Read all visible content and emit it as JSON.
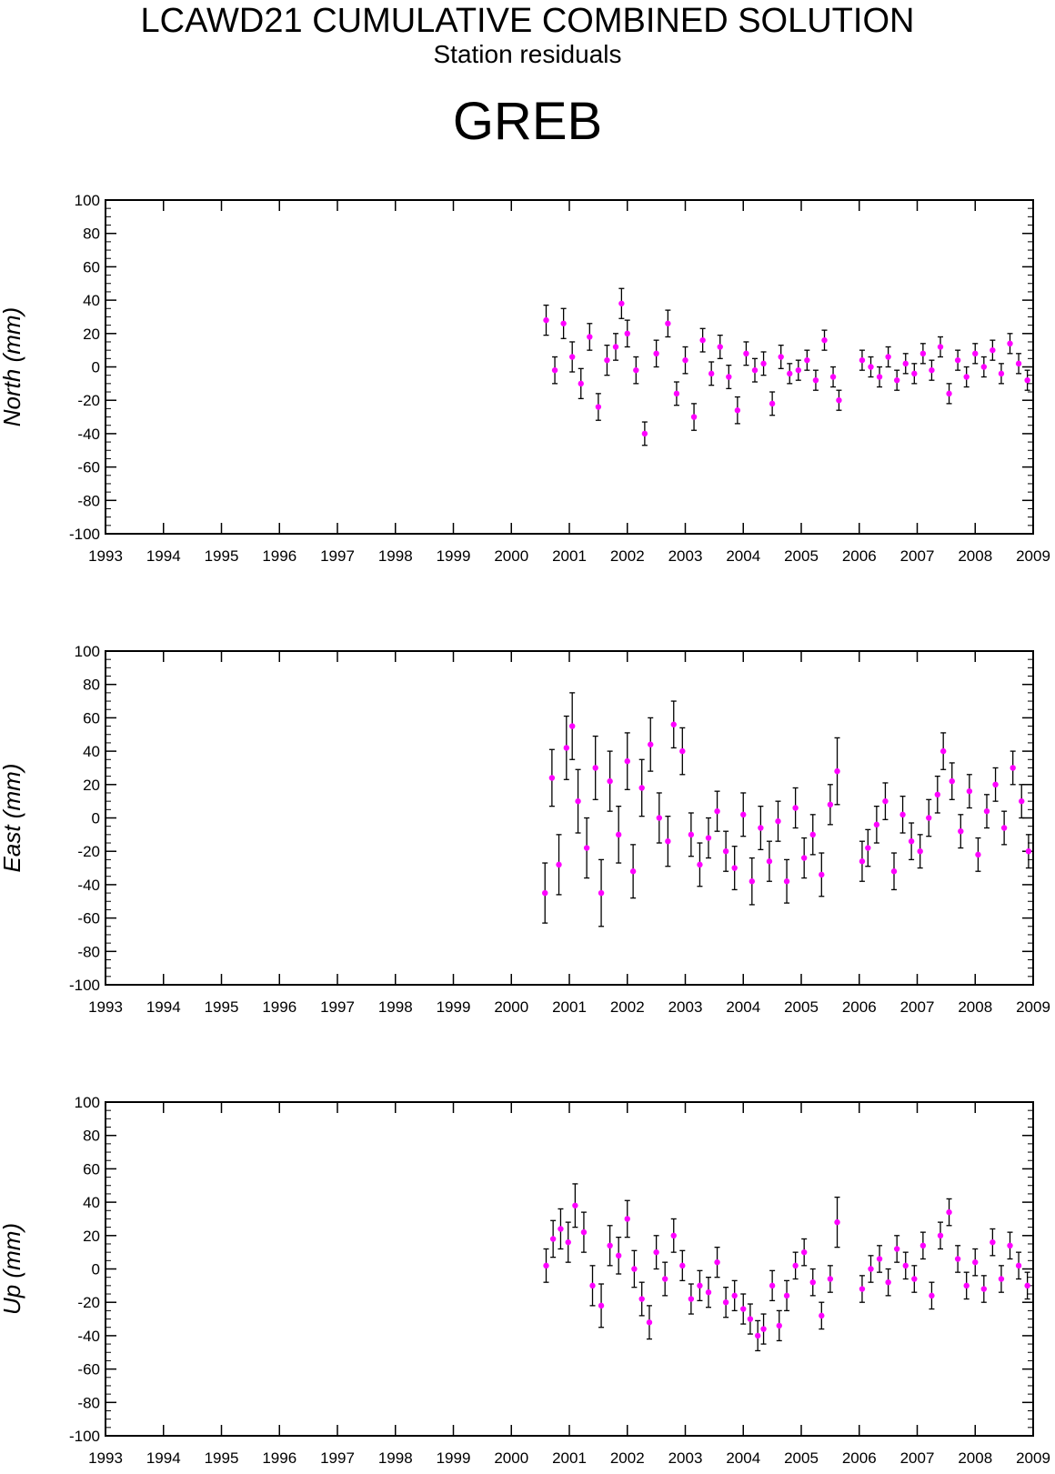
{
  "header": {
    "title": "LCAWD21 CUMULATIVE COMBINED SOLUTION",
    "subtitle": "Station residuals",
    "station": "GREB"
  },
  "colors": {
    "point": "#ff00ff",
    "errorbar": "#000000",
    "axis": "#000000"
  },
  "chart_data": [
    {
      "type": "scatter",
      "ylabel": "North (mm)",
      "ylim": [
        -100,
        100
      ],
      "xlim": [
        1993,
        2009
      ],
      "yticks": [
        "100",
        "80",
        "60",
        "40",
        "20",
        "0",
        "-20",
        "-40",
        "-60",
        "-80",
        "-100"
      ],
      "xticks": [
        "1993",
        "1994",
        "1995",
        "1996",
        "1997",
        "1998",
        "1999",
        "2000",
        "2001",
        "2002",
        "2003",
        "2004",
        "2005",
        "2006",
        "2007",
        "2008",
        "2009"
      ],
      "series": [
        {
          "x": [
            2000.6,
            2000.75,
            2000.9,
            2001.05,
            2001.2,
            2001.35,
            2001.5,
            2001.65,
            2001.8,
            2001.9,
            2002.0,
            2002.15,
            2002.3,
            2002.5,
            2002.7,
            2002.85,
            2003.0,
            2003.15,
            2003.3,
            2003.45,
            2003.6,
            2003.75,
            2003.9,
            2004.05,
            2004.2,
            2004.35,
            2004.5,
            2004.65,
            2004.8,
            2004.95,
            2005.1,
            2005.25,
            2005.4,
            2005.55,
            2005.65,
            2006.05,
            2006.2,
            2006.35,
            2006.5,
            2006.65,
            2006.8,
            2006.95,
            2007.1,
            2007.25,
            2007.4,
            2007.55,
            2007.7,
            2007.85,
            2008.0,
            2008.15,
            2008.3,
            2008.45,
            2008.6,
            2008.75,
            2008.9
          ],
          "y": [
            28,
            -2,
            26,
            6,
            -10,
            18,
            -24,
            4,
            12,
            38,
            20,
            -2,
            -40,
            8,
            26,
            -16,
            4,
            -30,
            16,
            -4,
            12,
            -6,
            -26,
            8,
            -2,
            2,
            -22,
            6,
            -4,
            -2,
            4,
            -8,
            16,
            -6,
            -20,
            4,
            0,
            -6,
            6,
            -8,
            2,
            -4,
            8,
            -2,
            12,
            -16,
            4,
            -6,
            8,
            0,
            10,
            -4,
            14,
            2,
            -8
          ],
          "err": [
            9,
            8,
            9,
            9,
            9,
            8,
            8,
            9,
            8,
            9,
            8,
            8,
            7,
            8,
            8,
            7,
            8,
            8,
            7,
            7,
            7,
            7,
            8,
            7,
            7,
            7,
            7,
            7,
            6,
            6,
            6,
            6,
            6,
            6,
            6,
            6,
            6,
            6,
            6,
            6,
            6,
            6,
            6,
            6,
            6,
            6,
            6,
            6,
            6,
            6,
            6,
            6,
            6,
            6,
            6
          ]
        }
      ]
    },
    {
      "type": "scatter",
      "ylabel": "East (mm)",
      "ylim": [
        -100,
        100
      ],
      "xlim": [
        1993,
        2009
      ],
      "yticks": [
        "100",
        "80",
        "60",
        "40",
        "20",
        "0",
        "-20",
        "-40",
        "-60",
        "-80",
        "-100"
      ],
      "xticks": [
        "1993",
        "1994",
        "1995",
        "1996",
        "1997",
        "1998",
        "1999",
        "2000",
        "2001",
        "2002",
        "2003",
        "2004",
        "2005",
        "2006",
        "2007",
        "2008",
        "2009"
      ],
      "series": [
        {
          "x": [
            2000.58,
            2000.7,
            2000.82,
            2000.95,
            2001.05,
            2001.15,
            2001.3,
            2001.45,
            2001.55,
            2001.7,
            2001.85,
            2002.0,
            2002.1,
            2002.25,
            2002.4,
            2002.55,
            2002.7,
            2002.8,
            2002.95,
            2003.1,
            2003.25,
            2003.4,
            2003.55,
            2003.7,
            2003.85,
            2004.0,
            2004.15,
            2004.3,
            2004.45,
            2004.6,
            2004.75,
            2004.9,
            2005.05,
            2005.2,
            2005.35,
            2005.5,
            2005.62,
            2006.05,
            2006.15,
            2006.3,
            2006.45,
            2006.6,
            2006.75,
            2006.9,
            2007.05,
            2007.2,
            2007.35,
            2007.45,
            2007.6,
            2007.75,
            2007.9,
            2008.05,
            2008.2,
            2008.35,
            2008.5,
            2008.65,
            2008.8,
            2008.92
          ],
          "y": [
            -45,
            24,
            -28,
            42,
            55,
            10,
            -18,
            30,
            -45,
            22,
            -10,
            34,
            -32,
            18,
            44,
            0,
            -14,
            56,
            40,
            -10,
            -28,
            -12,
            4,
            -20,
            -30,
            2,
            -38,
            -6,
            -26,
            -2,
            -38,
            6,
            -24,
            -10,
            -34,
            8,
            28,
            -26,
            -18,
            -4,
            10,
            -32,
            2,
            -14,
            -20,
            0,
            14,
            40,
            22,
            -8,
            16,
            -22,
            4,
            20,
            -6,
            30,
            10,
            -20
          ],
          "err": [
            18,
            17,
            18,
            19,
            20,
            19,
            18,
            19,
            20,
            18,
            17,
            17,
            16,
            17,
            16,
            15,
            15,
            14,
            14,
            13,
            13,
            12,
            12,
            12,
            13,
            13,
            14,
            13,
            12,
            12,
            13,
            12,
            12,
            12,
            13,
            12,
            20,
            12,
            11,
            11,
            11,
            11,
            11,
            11,
            10,
            11,
            11,
            11,
            11,
            10,
            10,
            10,
            10,
            10,
            10,
            10,
            10,
            10
          ]
        }
      ]
    },
    {
      "type": "scatter",
      "ylabel": "Up (mm)",
      "ylim": [
        -100,
        100
      ],
      "xlim": [
        1993,
        2009
      ],
      "yticks": [
        "100",
        "80",
        "60",
        "40",
        "20",
        "0",
        "-20",
        "-40",
        "-60",
        "-80",
        "-100"
      ],
      "xticks": [
        "1993",
        "1994",
        "1995",
        "1996",
        "1997",
        "1998",
        "1999",
        "2000",
        "2001",
        "2002",
        "2003",
        "2004",
        "2005",
        "2006",
        "2007",
        "2008",
        "2009"
      ],
      "series": [
        {
          "x": [
            2000.6,
            2000.72,
            2000.85,
            2000.98,
            2001.1,
            2001.25,
            2001.4,
            2001.55,
            2001.7,
            2001.85,
            2002.0,
            2002.12,
            2002.25,
            2002.38,
            2002.5,
            2002.65,
            2002.8,
            2002.95,
            2003.1,
            2003.25,
            2003.4,
            2003.55,
            2003.7,
            2003.85,
            2004.0,
            2004.12,
            2004.25,
            2004.35,
            2004.5,
            2004.62,
            2004.75,
            2004.9,
            2005.05,
            2005.2,
            2005.35,
            2005.5,
            2005.62,
            2006.05,
            2006.2,
            2006.35,
            2006.5,
            2006.65,
            2006.8,
            2006.95,
            2007.1,
            2007.25,
            2007.4,
            2007.55,
            2007.7,
            2007.85,
            2008.0,
            2008.15,
            2008.3,
            2008.45,
            2008.6,
            2008.75,
            2008.9
          ],
          "y": [
            2,
            18,
            24,
            16,
            38,
            22,
            -10,
            -22,
            14,
            8,
            30,
            0,
            -18,
            -32,
            10,
            -6,
            20,
            2,
            -18,
            -10,
            -14,
            4,
            -20,
            -16,
            -24,
            -30,
            -40,
            -36,
            -10,
            -34,
            -16,
            2,
            10,
            -8,
            -28,
            -6,
            28,
            -12,
            0,
            6,
            -8,
            12,
            2,
            -6,
            14,
            -16,
            20,
            34,
            6,
            -10,
            4,
            -12,
            16,
            -6,
            14,
            2,
            -10
          ],
          "err": [
            10,
            11,
            12,
            12,
            13,
            12,
            12,
            13,
            12,
            11,
            11,
            11,
            10,
            10,
            10,
            10,
            10,
            9,
            9,
            9,
            9,
            9,
            9,
            9,
            9,
            9,
            9,
            9,
            9,
            9,
            9,
            8,
            8,
            8,
            8,
            8,
            15,
            8,
            8,
            8,
            8,
            8,
            8,
            8,
            8,
            8,
            8,
            8,
            8,
            8,
            8,
            8,
            8,
            8,
            8,
            8,
            8
          ]
        }
      ]
    }
  ]
}
